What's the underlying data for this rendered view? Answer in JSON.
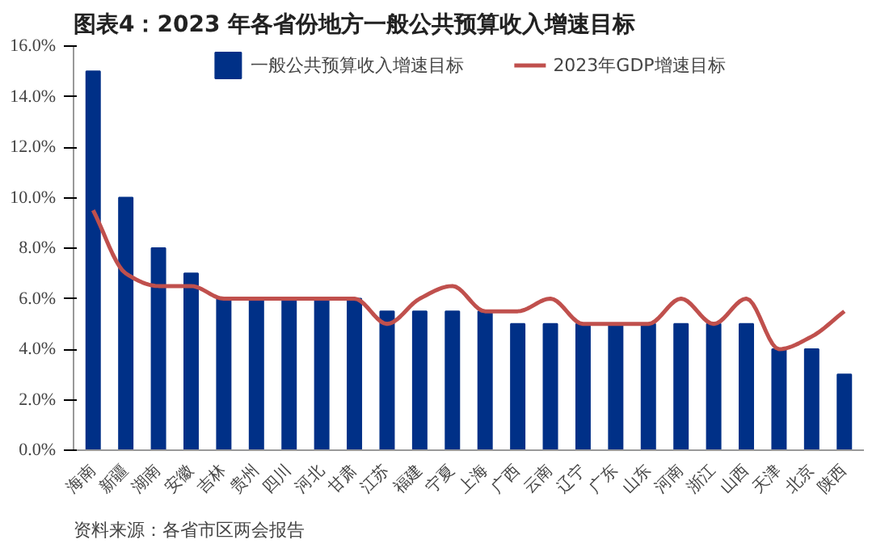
{
  "chart_data": {
    "type": "bar",
    "title": "图表4：2023 年各省份地方一般公共预算收入增速目标",
    "categories": [
      "海南",
      "新疆",
      "湖南",
      "安徽",
      "吉林",
      "贵州",
      "四川",
      "河北",
      "甘肃",
      "江苏",
      "福建",
      "宁夏",
      "上海",
      "广西",
      "云南",
      "辽宁",
      "广东",
      "山东",
      "河南",
      "浙江",
      "山西",
      "天津",
      "北京",
      "陕西"
    ],
    "series": [
      {
        "name": "一般公共预算收入增速目标",
        "color": "#003087",
        "values": [
          15,
          10,
          8,
          7,
          6,
          6,
          6,
          6,
          6,
          5.5,
          5.5,
          5.5,
          5.5,
          5,
          5,
          5,
          5,
          5,
          5,
          5,
          5,
          4,
          4,
          3
        ]
      },
      {
        "name": "2023年GDP增速目标",
        "type": "line",
        "color": "#c0504d",
        "values": [
          9.5,
          7,
          6.5,
          6.5,
          6,
          6,
          6,
          6,
          6,
          5,
          6,
          6.5,
          5.5,
          5.5,
          6,
          5,
          5,
          5,
          6,
          5,
          6,
          4,
          4.5,
          5.5
        ]
      }
    ],
    "ylim": [
      0,
      16
    ],
    "yticks": [
      {
        "value": 0,
        "label": "0.0%"
      },
      {
        "value": 2,
        "label": "2.0%"
      },
      {
        "value": 4,
        "label": "4.0%"
      },
      {
        "value": 6,
        "label": "6.0%"
      },
      {
        "value": 8,
        "label": "8.0%"
      },
      {
        "value": 10,
        "label": "10.0%"
      },
      {
        "value": 12,
        "label": "12.0%"
      },
      {
        "value": 14,
        "label": "14.0%"
      },
      {
        "value": 16,
        "label": "16.0%"
      }
    ],
    "grid": false,
    "legend": "top",
    "annotations": [
      "资料来源：各省市区两会报告"
    ]
  }
}
